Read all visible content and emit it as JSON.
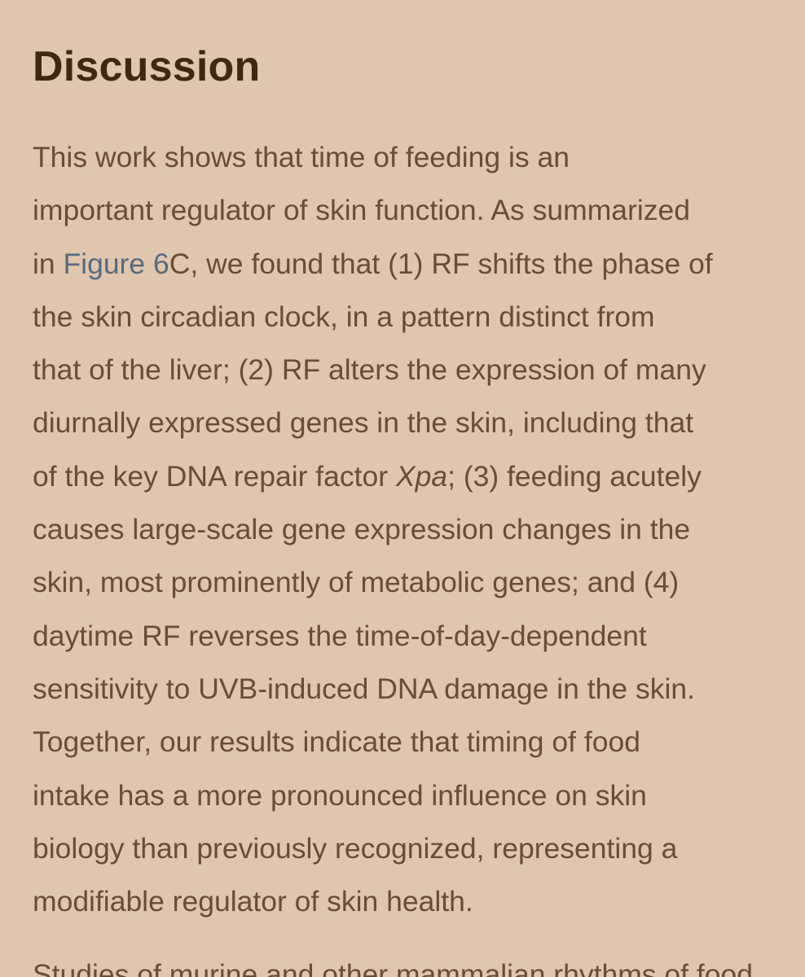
{
  "section": {
    "heading": "Discussion"
  },
  "paragraph1": {
    "line1": "This work shows that time of feeding is an",
    "line2": "important regulator of skin function. As summarized",
    "line3_before": "in ",
    "line3_link": "Figure 6",
    "line3_after": "C, we found that (1) RF shifts the phase of",
    "line4": "the skin circadian clock, in a pattern distinct from",
    "line5": "that of the liver; (2) RF alters the expression of many",
    "line6": "diurnally expressed genes in the skin, including that",
    "line7_before": "of the key DNA repair factor ",
    "line7_italic": "Xpa",
    "line7_after": "; (3) feeding acutely",
    "line8": "causes large-scale gene expression changes in the",
    "line9": "skin, most prominently of metabolic genes; and (4)",
    "line10": "daytime RF reverses the time-of-day-dependent",
    "line11": "sensitivity to UVB-induced DNA damage in the skin.",
    "line12": "Together, our results indicate that timing of food",
    "line13": "intake has a more pronounced influence on skin",
    "line14": "biology than previously recognized, representing a",
    "line15": "modifiable regulator of skin health."
  },
  "paragraph2": {
    "line1": "Studies of murine and other mammalian rhythms of food"
  }
}
